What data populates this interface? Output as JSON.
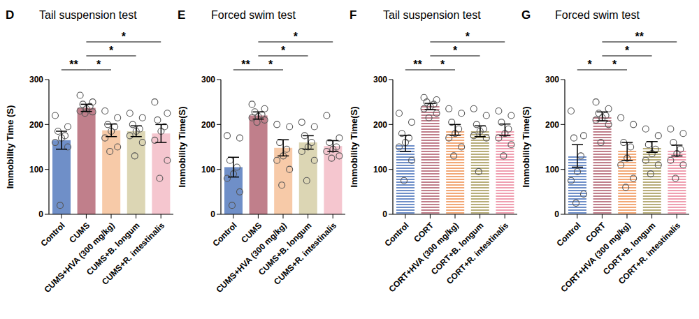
{
  "chart_data": [
    {
      "type": "bar",
      "panel": "D",
      "title": "Tail suspension test",
      "y_label": "Immobility Time (S)",
      "categories": [
        "Control",
        "CUMS",
        "CUMS+HVA (300 mg/kg)",
        "CUMS+B. longum",
        "CUMS+R. intestinalis"
      ],
      "values": [
        165,
        237,
        187,
        185,
        180
      ],
      "errors": [
        20,
        8,
        14,
        12,
        20
      ],
      "points": [
        [
          220,
          195,
          185,
          175,
          170,
          160,
          150,
          20
        ],
        [
          265,
          250,
          245,
          240,
          235,
          230,
          228,
          225
        ],
        [
          230,
          215,
          200,
          195,
          185,
          170,
          150,
          140
        ],
        [
          225,
          215,
          200,
          190,
          185,
          175,
          160,
          130
        ],
        [
          250,
          225,
          210,
          195,
          185,
          165,
          120,
          80
        ]
      ],
      "colors": [
        "#6f8fc8",
        "#c07f8b",
        "#f7caa8",
        "#dcd6b4",
        "#f5c6cf"
      ],
      "ylim": [
        0,
        300
      ],
      "yticks": [
        0,
        100,
        200,
        300
      ],
      "grid": false,
      "significance": [
        {
          "between": [
            "Control",
            "CUMS"
          ],
          "label": "**"
        },
        {
          "between": [
            "CUMS",
            "CUMS+HVA (300 mg/kg)"
          ],
          "label": "*"
        },
        {
          "between": [
            "CUMS",
            "CUMS+B. longum"
          ],
          "label": "*"
        },
        {
          "between": [
            "CUMS",
            "CUMS+R. intestinalis"
          ],
          "label": "*"
        }
      ]
    },
    {
      "type": "bar",
      "panel": "E",
      "title": "Forced swim test",
      "y_label": "Immobility Time(S)",
      "categories": [
        "Control",
        "CUMS",
        "CUMS+HVA (300 mg/kg)",
        "CUMS+B. longum",
        "CUMS+R. intestinalis"
      ],
      "values": [
        105,
        220,
        148,
        160,
        152
      ],
      "errors": [
        22,
        8,
        18,
        15,
        12
      ],
      "points": [
        [
          175,
          170,
          120,
          105,
          90,
          80,
          50,
          20
        ],
        [
          245,
          235,
          228,
          222,
          218,
          215,
          210,
          205
        ],
        [
          200,
          195,
          160,
          145,
          130,
          120,
          100,
          65
        ],
        [
          205,
          195,
          175,
          160,
          150,
          140,
          120,
          75
        ],
        [
          220,
          170,
          160,
          150,
          145,
          140,
          130,
          125
        ]
      ],
      "colors": [
        "#6f8fc8",
        "#c07f8b",
        "#f7caa8",
        "#dcd6b4",
        "#f5c6cf"
      ],
      "ylim": [
        0,
        300
      ],
      "yticks": [
        0,
        100,
        200,
        300
      ],
      "grid": false,
      "significance": [
        {
          "between": [
            "Control",
            "CUMS"
          ],
          "label": "**"
        },
        {
          "between": [
            "CUMS",
            "CUMS+HVA (300 mg/kg)"
          ],
          "label": "*"
        },
        {
          "between": [
            "CUMS",
            "CUMS+B. longum"
          ],
          "label": "*"
        },
        {
          "between": [
            "CUMS",
            "CUMS+R. intestinalis"
          ],
          "label": "*"
        }
      ]
    },
    {
      "type": "bar",
      "panel": "F",
      "title": "Tail suspension test",
      "y_label": "Immobility Time(S)",
      "categories": [
        "Control",
        "CORT",
        "CORT+HVA (300 mg/kg)",
        "CORT+B. longum",
        "CORT+R. intestinalis"
      ],
      "values": [
        158,
        240,
        188,
        185,
        188
      ],
      "errors": [
        18,
        7,
        12,
        12,
        13
      ],
      "points": [
        [
          225,
          205,
          180,
          170,
          160,
          150,
          120,
          75
        ],
        [
          260,
          255,
          250,
          245,
          240,
          235,
          225,
          215
        ],
        [
          235,
          225,
          205,
          190,
          180,
          170,
          150,
          130
        ],
        [
          235,
          220,
          200,
          190,
          185,
          175,
          170,
          95
        ],
        [
          230,
          220,
          205,
          190,
          180,
          170,
          155,
          130
        ]
      ],
      "colors": [
        "#6f8fc8",
        "#c07f8b",
        "#f2a877",
        "#b8ad7a",
        "#ef9fb0"
      ],
      "ylim": [
        0,
        300
      ],
      "yticks": [
        0,
        100,
        200,
        300
      ],
      "grid": false,
      "significance": [
        {
          "between": [
            "Control",
            "CORT"
          ],
          "label": "**"
        },
        {
          "between": [
            "CORT",
            "CORT+HVA (300 mg/kg)"
          ],
          "label": "*"
        },
        {
          "between": [
            "CORT",
            "CORT+B. longum"
          ],
          "label": "*"
        },
        {
          "between": [
            "CORT",
            "CORT+R. intestinalis"
          ],
          "label": "*"
        }
      ]
    },
    {
      "type": "bar",
      "panel": "G",
      "title": "Forced swim test",
      "y_label": "Immobility Time(S)",
      "categories": [
        "Control",
        "CORT",
        "CORT+HVA (300 mg/kg)",
        "CORT+B. longum",
        "CORT+R. intestinalis"
      ],
      "values": [
        130,
        218,
        140,
        150,
        142
      ],
      "errors": [
        25,
        10,
        20,
        12,
        12
      ],
      "points": [
        [
          230,
          175,
          170,
          130,
          95,
          75,
          45,
          25
        ],
        [
          250,
          235,
          225,
          220,
          215,
          210,
          200,
          160
        ],
        [
          215,
          200,
          160,
          150,
          125,
          110,
          80,
          60
        ],
        [
          190,
          175,
          155,
          145,
          135,
          120,
          110,
          90
        ],
        [
          190,
          180,
          160,
          145,
          135,
          120,
          110,
          80
        ]
      ],
      "colors": [
        "#6f8fc8",
        "#c07f8b",
        "#f2a877",
        "#b8ad7a",
        "#ef9fb0"
      ],
      "ylim": [
        0,
        300
      ],
      "yticks": [
        0,
        100,
        200,
        300
      ],
      "grid": false,
      "significance": [
        {
          "between": [
            "Control",
            "CORT"
          ],
          "label": "*"
        },
        {
          "between": [
            "CORT",
            "CORT+HVA (300 mg/kg)"
          ],
          "label": "*"
        },
        {
          "between": [
            "CORT",
            "CORT+B. longum"
          ],
          "label": "*"
        },
        {
          "between": [
            "CORT",
            "CORT+R. intestinalis"
          ],
          "label": "**"
        }
      ]
    }
  ]
}
